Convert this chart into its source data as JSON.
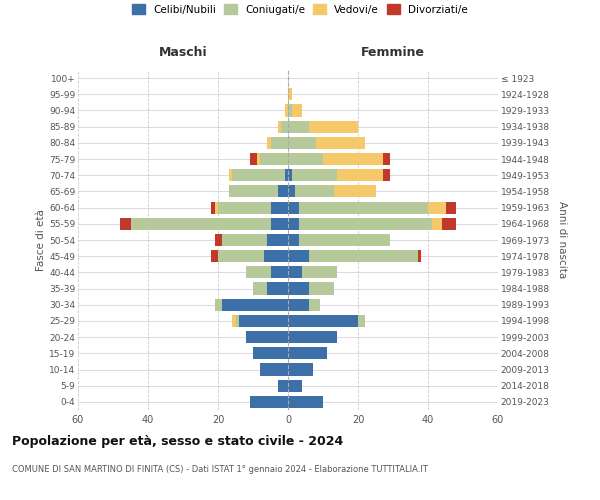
{
  "age_groups": [
    "0-4",
    "5-9",
    "10-14",
    "15-19",
    "20-24",
    "25-29",
    "30-34",
    "35-39",
    "40-44",
    "45-49",
    "50-54",
    "55-59",
    "60-64",
    "65-69",
    "70-74",
    "75-79",
    "80-84",
    "85-89",
    "90-94",
    "95-99",
    "100+"
  ],
  "birth_years": [
    "2019-2023",
    "2014-2018",
    "2009-2013",
    "2004-2008",
    "1999-2003",
    "1994-1998",
    "1989-1993",
    "1984-1988",
    "1979-1983",
    "1974-1978",
    "1969-1973",
    "1964-1968",
    "1959-1963",
    "1954-1958",
    "1949-1953",
    "1944-1948",
    "1939-1943",
    "1934-1938",
    "1929-1933",
    "1924-1928",
    "≤ 1923"
  ],
  "males": {
    "celibi": [
      11,
      3,
      8,
      10,
      12,
      14,
      19,
      6,
      5,
      7,
      6,
      5,
      5,
      3,
      1,
      0,
      0,
      0,
      0,
      0,
      0
    ],
    "coniugati": [
      0,
      0,
      0,
      0,
      0,
      1,
      2,
      4,
      7,
      13,
      13,
      40,
      15,
      14,
      15,
      8,
      5,
      2,
      0,
      0,
      0
    ],
    "vedovi": [
      0,
      0,
      0,
      0,
      0,
      1,
      0,
      0,
      0,
      0,
      0,
      0,
      1,
      0,
      1,
      1,
      1,
      1,
      1,
      0,
      0
    ],
    "divorziati": [
      0,
      0,
      0,
      0,
      0,
      0,
      0,
      0,
      0,
      2,
      2,
      3,
      1,
      0,
      0,
      2,
      0,
      0,
      0,
      0,
      0
    ]
  },
  "females": {
    "nubili": [
      10,
      4,
      7,
      11,
      14,
      20,
      6,
      6,
      4,
      6,
      3,
      3,
      3,
      2,
      1,
      0,
      0,
      0,
      0,
      0,
      0
    ],
    "coniugate": [
      0,
      0,
      0,
      0,
      0,
      2,
      3,
      7,
      10,
      31,
      26,
      38,
      37,
      11,
      13,
      10,
      8,
      6,
      1,
      0,
      0
    ],
    "vedove": [
      0,
      0,
      0,
      0,
      0,
      0,
      0,
      0,
      0,
      0,
      0,
      3,
      5,
      12,
      13,
      17,
      14,
      14,
      3,
      1,
      0
    ],
    "divorziate": [
      0,
      0,
      0,
      0,
      0,
      0,
      0,
      0,
      0,
      1,
      0,
      4,
      3,
      0,
      2,
      2,
      0,
      0,
      0,
      0,
      0
    ]
  },
  "colors": {
    "celibi": "#3d6fa8",
    "coniugati": "#b5c99a",
    "vedovi": "#f5c96a",
    "divorziati": "#c0392b"
  },
  "xlim": 60,
  "title": "Popolazione per età, sesso e stato civile - 2024",
  "subtitle": "COMUNE DI SAN MARTINO DI FINITA (CS) - Dati ISTAT 1° gennaio 2024 - Elaborazione TUTTITALIA.IT",
  "xlabel_left": "Maschi",
  "xlabel_right": "Femmine",
  "ylabel_left": "Fasce di età",
  "ylabel_right": "Anni di nascita",
  "legend_labels": [
    "Celibi/Nubili",
    "Coniugati/e",
    "Vedovi/e",
    "Divorziati/e"
  ],
  "background_color": "#ffffff",
  "grid_color": "#cccccc"
}
